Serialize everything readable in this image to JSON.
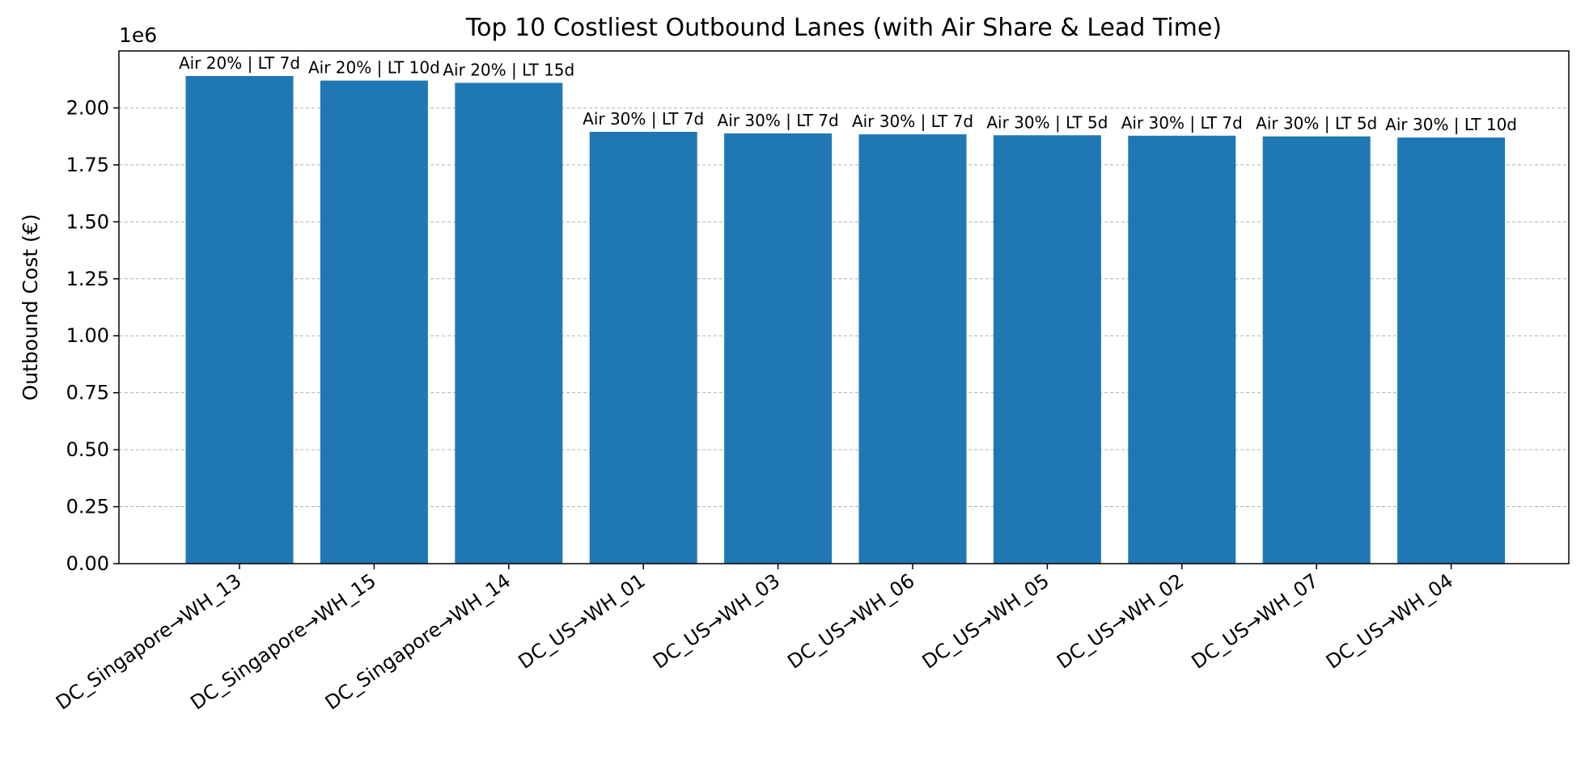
{
  "chart_data": {
    "type": "bar",
    "title": "Top 10 Costliest Outbound Lanes (with Air Share & Lead Time)",
    "xlabel": "",
    "ylabel": "Outbound Cost (€)",
    "y_scale_label": "1e6",
    "ylim": [
      0,
      2250000
    ],
    "yticks": [
      0,
      250000,
      500000,
      750000,
      1000000,
      1250000,
      1500000,
      1750000,
      2000000
    ],
    "ytick_labels": [
      "0.00",
      "0.25",
      "0.50",
      "0.75",
      "1.00",
      "1.25",
      "1.50",
      "1.75",
      "2.00"
    ],
    "grid": "y-dashed",
    "categories": [
      "DC_Singapore→WH_13",
      "DC_Singapore→WH_15",
      "DC_Singapore→WH_14",
      "DC_US→WH_01",
      "DC_US→WH_03",
      "DC_US→WH_06",
      "DC_US→WH_05",
      "DC_US→WH_02",
      "DC_US→WH_07",
      "DC_US→WH_04"
    ],
    "values": [
      2140000,
      2120000,
      2110000,
      1895000,
      1888000,
      1884000,
      1880000,
      1878000,
      1875000,
      1870000
    ],
    "bar_labels": [
      "Air 20% | LT 7d",
      "Air 20% | LT 10d",
      "Air 20% | LT 15d",
      "Air 30% | LT 7d",
      "Air 30% | LT 7d",
      "Air 30% | LT 7d",
      "Air 30% | LT 5d",
      "Air 30% | LT 7d",
      "Air 30% | LT 5d",
      "Air 30% | LT 10d"
    ],
    "bar_color": "#1f77b4"
  }
}
